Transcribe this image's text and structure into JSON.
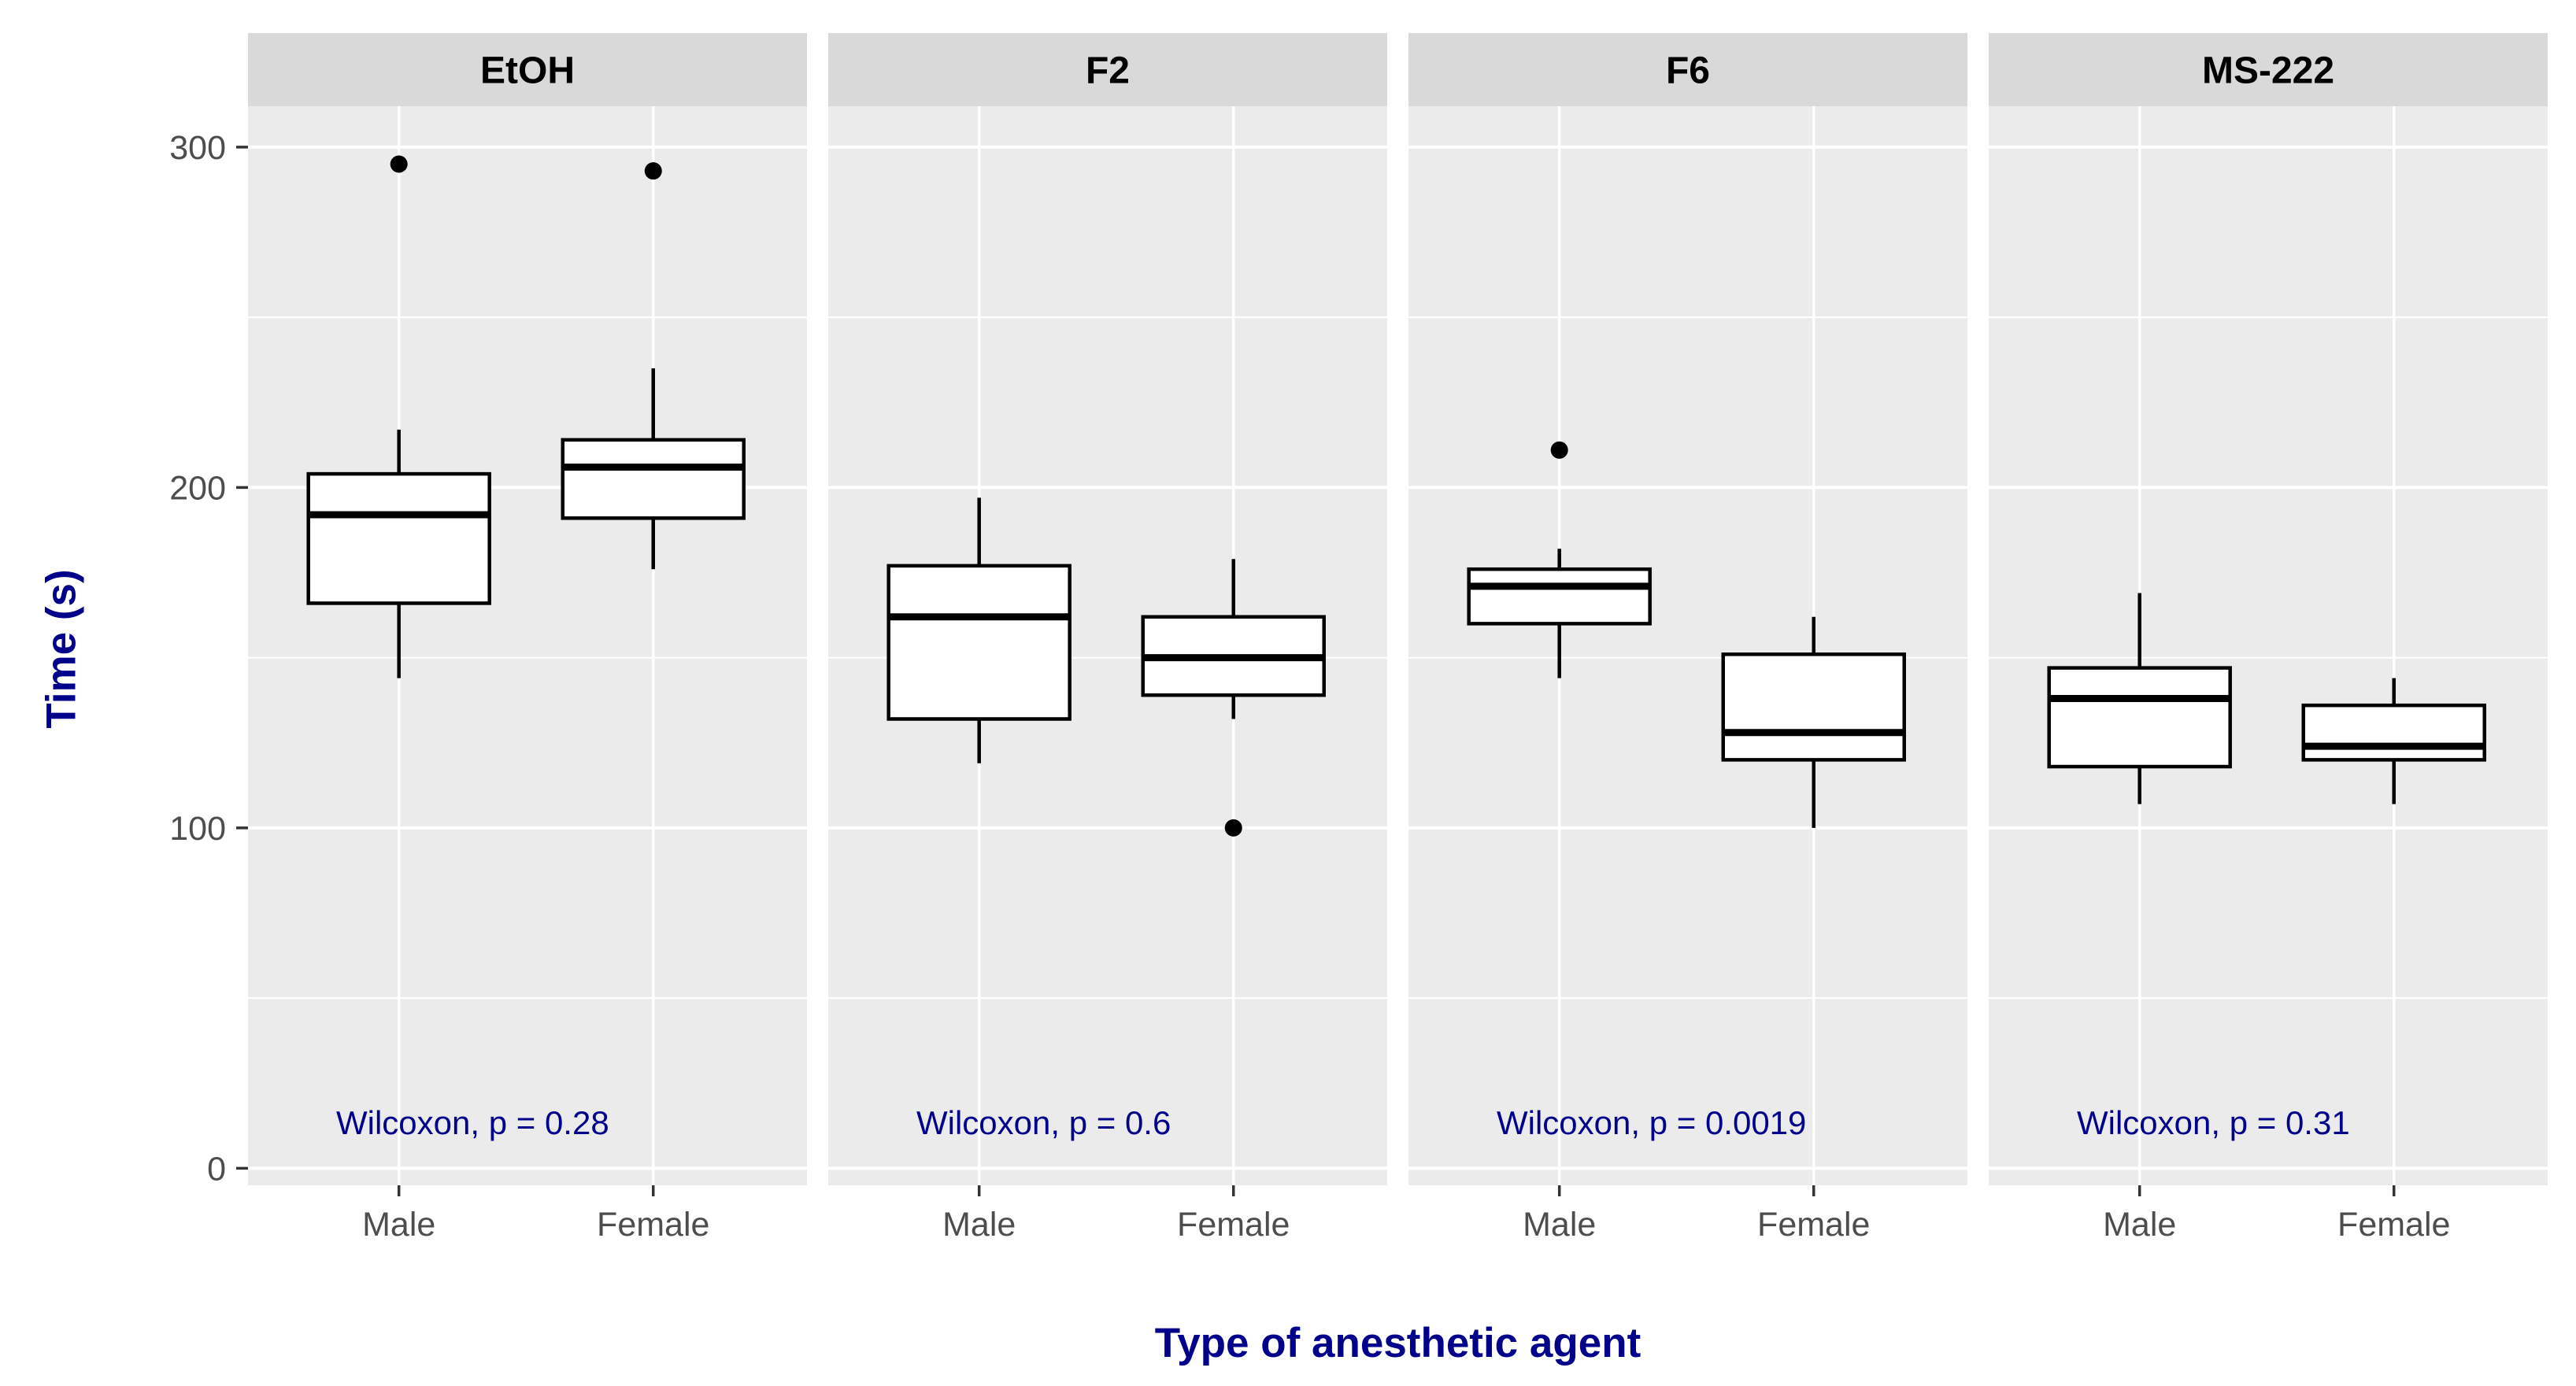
{
  "figure": {
    "y_axis_title": "Time (s)",
    "x_axis_title": "Type of anesthetic agent"
  },
  "colors": {
    "panel_background": "#EBEBEB",
    "strip_background": "#D9D9D9",
    "gridline": "#FFFFFF",
    "axis_text": "#4D4D4D",
    "tick_mark": "#333333",
    "strip_text": "#000000",
    "annotation_text": "#00008B",
    "box_border": "#000000",
    "box_fill": "#FFFFFF"
  },
  "chart_data": {
    "type": "boxplot",
    "faceted": true,
    "title": "",
    "xlabel": "Type of anesthetic agent",
    "ylabel": "Time (s)",
    "y_axis": {
      "ticks": [
        0,
        100,
        200,
        300
      ],
      "minor_gridlines": [
        50,
        150,
        250
      ],
      "range": [
        -5,
        312
      ],
      "grid": true
    },
    "categories": [
      "Male",
      "Female"
    ],
    "facets": [
      {
        "label": "EtOH",
        "p_annotation": "Wilcoxon, p = 0.28",
        "boxes": [
          {
            "group": "Male",
            "whisker_min": 144,
            "q1": 166,
            "median": 192,
            "q3": 204,
            "whisker_max": 217,
            "outliers": [
              295
            ]
          },
          {
            "group": "Female",
            "whisker_min": 176,
            "q1": 191,
            "median": 206,
            "q3": 214,
            "whisker_max": 235,
            "outliers": [
              293
            ]
          }
        ]
      },
      {
        "label": "F2",
        "p_annotation": "Wilcoxon, p = 0.6",
        "boxes": [
          {
            "group": "Male",
            "whisker_min": 119,
            "q1": 132,
            "median": 162,
            "q3": 177,
            "whisker_max": 197,
            "outliers": []
          },
          {
            "group": "Female",
            "whisker_min": 132,
            "q1": 139,
            "median": 150,
            "q3": 162,
            "whisker_max": 179,
            "outliers": [
              100
            ]
          }
        ]
      },
      {
        "label": "F6",
        "p_annotation": "Wilcoxon, p = 0.0019",
        "boxes": [
          {
            "group": "Male",
            "whisker_min": 144,
            "q1": 160,
            "median": 171,
            "q3": 176,
            "whisker_max": 182,
            "outliers": [
              211
            ]
          },
          {
            "group": "Female",
            "whisker_min": 100,
            "q1": 120,
            "median": 128,
            "q3": 151,
            "whisker_max": 162,
            "outliers": []
          }
        ]
      },
      {
        "label": "MS-222",
        "p_annotation": "Wilcoxon, p = 0.31",
        "boxes": [
          {
            "group": "Male",
            "whisker_min": 107,
            "q1": 118,
            "median": 138,
            "q3": 147,
            "whisker_max": 169,
            "outliers": []
          },
          {
            "group": "Female",
            "whisker_min": 107,
            "q1": 120,
            "median": 124,
            "q3": 136,
            "whisker_max": 144,
            "outliers": []
          }
        ]
      }
    ]
  }
}
